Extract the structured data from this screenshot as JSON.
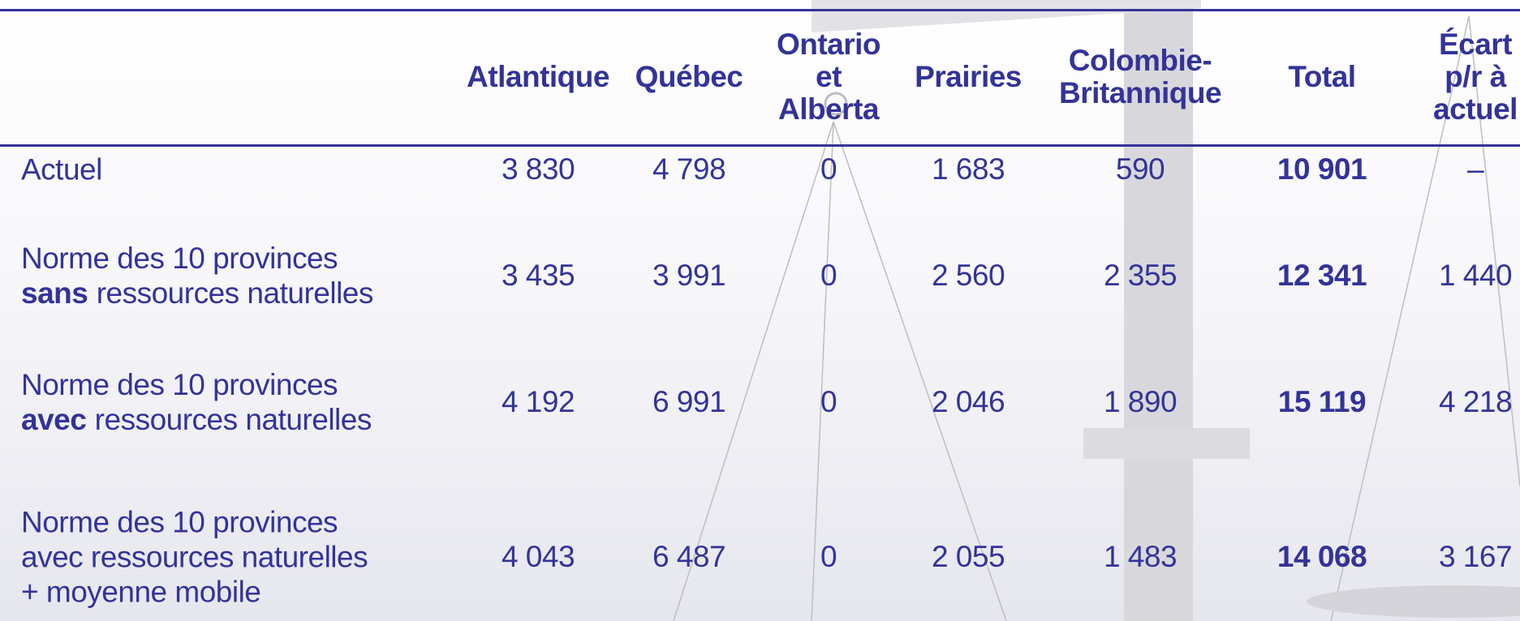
{
  "table": {
    "columns": [
      {
        "lines": [
          "Atlantique"
        ]
      },
      {
        "lines": [
          "Québec"
        ]
      },
      {
        "lines": [
          "Ontario",
          "et",
          "Alberta"
        ]
      },
      {
        "lines": [
          "Prairies"
        ]
      },
      {
        "lines": [
          "Colombie-",
          "Britannique"
        ]
      },
      {
        "lines": [
          "Total"
        ]
      },
      {
        "lines": [
          "Écart",
          "p/r à",
          "actuel"
        ]
      }
    ],
    "rows": [
      {
        "label": [
          [
            {
              "text": "Actuel"
            }
          ]
        ],
        "cells": [
          "3 830",
          "4 798",
          "0",
          "1 683",
          "590",
          "10 901",
          "–"
        ]
      },
      {
        "label": [
          [
            {
              "text": "Norme des 10 provinces"
            }
          ],
          [
            {
              "text": "sans",
              "bold": true
            },
            {
              "text": "ressources naturelles"
            }
          ]
        ],
        "cells": [
          "3 435",
          "3 991",
          "0",
          "2 560",
          "2 355",
          "12 341",
          "1 440"
        ]
      },
      {
        "label": [
          [
            {
              "text": "Norme des 10 provinces"
            }
          ],
          [
            {
              "text": "avec",
              "bold": true
            },
            {
              "text": "ressources naturelles"
            }
          ]
        ],
        "cells": [
          "4 192",
          "6 991",
          "0",
          "2 046",
          "1 890",
          "15 119",
          "4 218"
        ]
      },
      {
        "label": [
          [
            {
              "text": "Norme des 10 provinces"
            }
          ],
          [
            {
              "text": "avec ressources naturelles"
            }
          ],
          [
            {
              "text": "+ moyenne mobile"
            }
          ]
        ],
        "cells": [
          "4 043",
          "6 487",
          "0",
          "2 055",
          "1 483",
          "14 068",
          "3 167"
        ]
      }
    ]
  }
}
